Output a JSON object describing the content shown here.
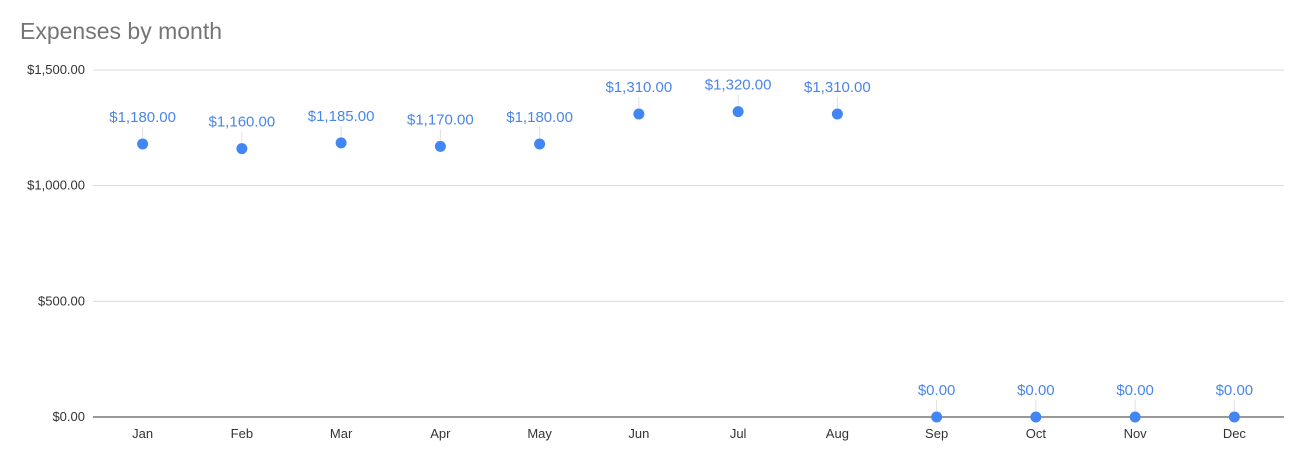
{
  "chart_data": {
    "type": "scatter",
    "title": "Expenses by month",
    "xlabel": "",
    "ylabel": "",
    "categories": [
      "Jan",
      "Feb",
      "Mar",
      "Apr",
      "May",
      "Jun",
      "Jul",
      "Aug",
      "Sep",
      "Oct",
      "Nov",
      "Dec"
    ],
    "values": [
      1180,
      1160,
      1185,
      1170,
      1180,
      1310,
      1320,
      1310,
      0,
      0,
      0,
      0
    ],
    "data_labels": [
      "$1,180.00",
      "$1,160.00",
      "$1,185.00",
      "$1,170.00",
      "$1,180.00",
      "$1,310.00",
      "$1,320.00",
      "$1,310.00",
      "$0.00",
      "$0.00",
      "$0.00",
      "$0.00"
    ],
    "ylim": [
      0,
      1500
    ],
    "yticks": [
      0,
      500,
      1000,
      1500
    ],
    "ytick_labels": [
      "$0.00",
      "$500.00",
      "$1,000.00",
      "$1,500.00"
    ],
    "grid": true,
    "legend": "none",
    "colors": {
      "series": "#4285f4",
      "data_label": "#4a86e8",
      "gridline": "#d9d9d9",
      "axis": "#333333",
      "title": "#757575"
    }
  }
}
